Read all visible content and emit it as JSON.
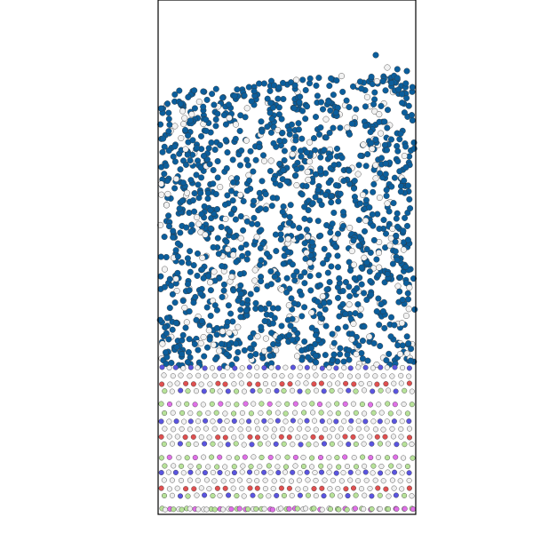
{
  "scene": {
    "description_visible_text": [],
    "simulation_box": {
      "border_color": "#000000"
    },
    "species_colors": {
      "liquid_blue": "#0b5e9c",
      "liquid_white": "#f2f2f2",
      "lattice_blue": "#5a55e0",
      "lattice_red": "#e05050",
      "lattice_white": "#eeeeee",
      "lattice_green": "#b8e39a",
      "lattice_magenta": "#e070e8"
    },
    "background": "#ffffff"
  }
}
